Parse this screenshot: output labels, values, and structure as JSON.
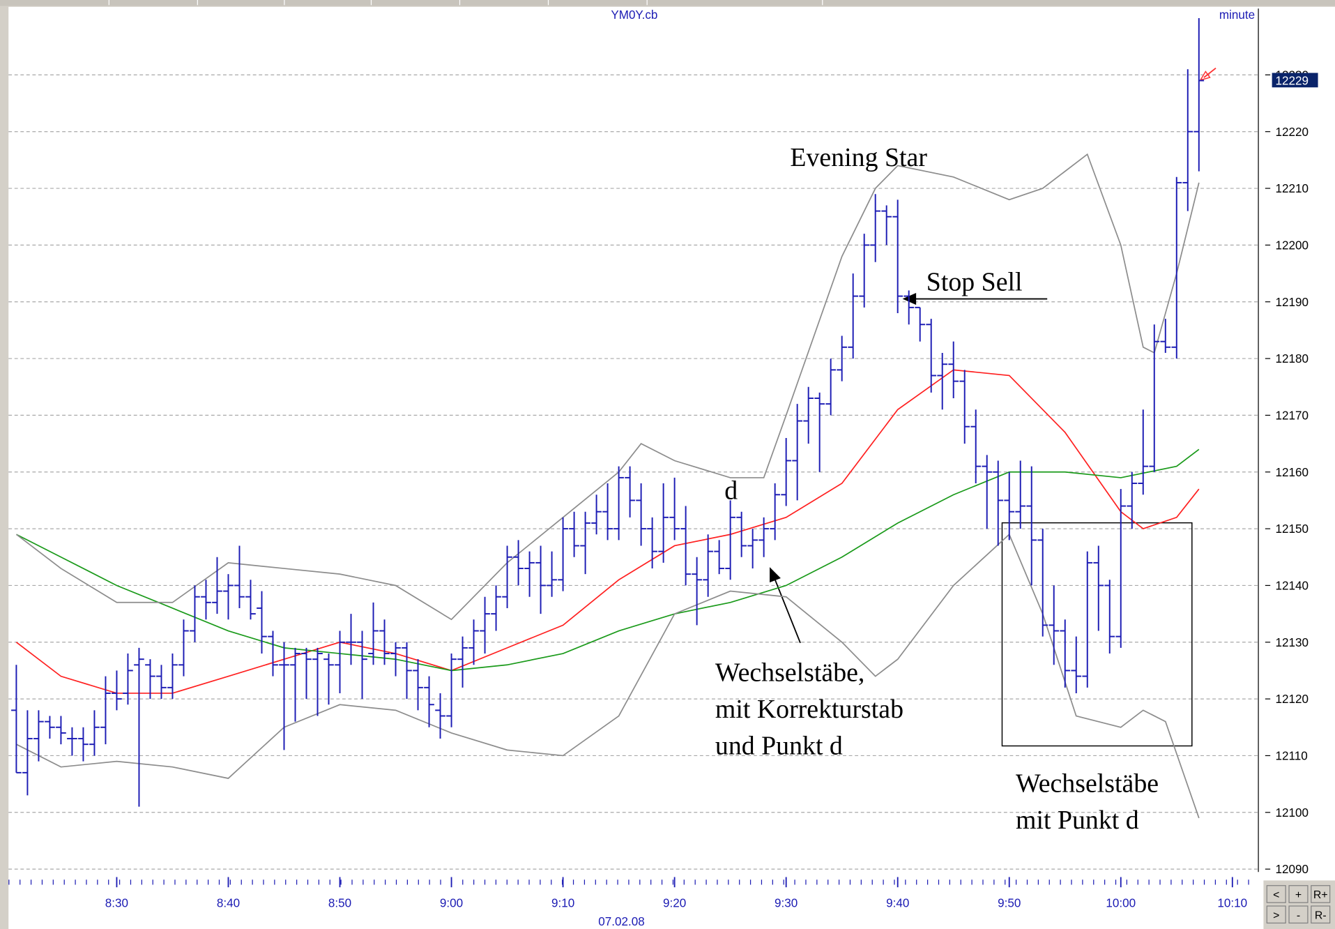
{
  "chart_data": {
    "type": "ohlc",
    "title": "YM0Y.cb",
    "interval_label": "minute",
    "date_label": "07.02.08",
    "last_price": 12229,
    "color": "#1c1cb4",
    "xlim": [
      500.3,
      612.1
    ],
    "xticks": [
      {
        "value": 510,
        "label": "8:30"
      },
      {
        "value": 520,
        "label": "8:40"
      },
      {
        "value": 530,
        "label": "8:50"
      },
      {
        "value": 540,
        "label": "9:00"
      },
      {
        "value": 550,
        "label": "9:10"
      },
      {
        "value": 560,
        "label": "9:20"
      },
      {
        "value": 570,
        "label": "9:30"
      },
      {
        "value": 580,
        "label": "9:40"
      },
      {
        "value": 590,
        "label": "9:50"
      },
      {
        "value": 600,
        "label": "10:00"
      },
      {
        "value": 610,
        "label": "10:10"
      }
    ],
    "ylim": [
      12089.8,
      12241.7
    ],
    "yticks": [
      12090,
      12100,
      12110,
      12120,
      12130,
      12140,
      12150,
      12160,
      12170,
      12180,
      12190,
      12200,
      12210,
      12220,
      12230
    ],
    "grid": true,
    "x": [
      501,
      502,
      503,
      504,
      505,
      506,
      507,
      508,
      509,
      510,
      511,
      512,
      513,
      514,
      515,
      516,
      517,
      518,
      519,
      520,
      521,
      522,
      523,
      524,
      525,
      526,
      527,
      528,
      529,
      530,
      531,
      532,
      533,
      534,
      535,
      536,
      537,
      538,
      539,
      540,
      541,
      542,
      543,
      544,
      545,
      546,
      547,
      548,
      549,
      550,
      551,
      552,
      553,
      554,
      555,
      556,
      557,
      558,
      559,
      560,
      561,
      562,
      563,
      564,
      565,
      566,
      567,
      568,
      569,
      570,
      571,
      572,
      573,
      574,
      575,
      576,
      577,
      578,
      579,
      580,
      581,
      582,
      583,
      584,
      585,
      586,
      587,
      588,
      589,
      590,
      591,
      592,
      593,
      594,
      595,
      596,
      597,
      598,
      599,
      600,
      601,
      602,
      603,
      604,
      605,
      606,
      607
    ],
    "open": [
      12118,
      12107,
      12113,
      12116,
      12115,
      12113,
      12113,
      12112,
      12115,
      12121,
      12121,
      12126,
      12126,
      12124,
      12122,
      12126,
      12132,
      12138,
      12137,
      12139,
      12140,
      12138,
      12136,
      12131,
      12126,
      12126,
      12128,
      12127,
      12127,
      12126,
      12130,
      12130,
      12128,
      12132,
      12128,
      12129,
      12125,
      12122,
      12118,
      12117,
      12127,
      12129,
      12132,
      12135,
      12138,
      12145,
      12143,
      12144,
      12140,
      12141,
      12150,
      12147,
      12151,
      12153,
      12150,
      12159,
      12155,
      12150,
      12146,
      12152,
      12150,
      12142,
      12141,
      12146,
      12143,
      12152,
      12147,
      12148,
      12150,
      12156,
      12162,
      12169,
      12173,
      12172,
      12178,
      12182,
      12191,
      12200,
      12206,
      12205,
      12191,
      12189,
      12186,
      12177,
      12179,
      12176,
      12168,
      12161,
      12160,
      12155,
      12153,
      12154,
      12148,
      12133,
      12132,
      12125,
      12124,
      12144,
      12140,
      12131,
      12154,
      12158,
      12161,
      12183,
      12182,
      12211,
      12220
    ],
    "high": [
      12126,
      12118,
      12118,
      12117,
      12117,
      12115,
      12115,
      12118,
      12124,
      12125,
      12128,
      12129,
      12127,
      12126,
      12128,
      12134,
      12140,
      12141,
      12145,
      12142,
      12147,
      12141,
      12139,
      12132,
      12130,
      12129,
      12129,
      12129,
      12128,
      12132,
      12135,
      12132,
      12137,
      12134,
      12130,
      12130,
      12127,
      12124,
      12121,
      12128,
      12131,
      12134,
      12138,
      12140,
      12147,
      12148,
      12146,
      12147,
      12146,
      12152,
      12153,
      12153,
      12156,
      12158,
      12161,
      12161,
      12158,
      12152,
      12158,
      12159,
      12154,
      12145,
      12149,
      12148,
      12155,
      12153,
      12150,
      12152,
      12158,
      12166,
      12172,
      12175,
      12174,
      12180,
      12184,
      12195,
      12202,
      12209,
      12207,
      12208,
      12192,
      12189,
      12187,
      12181,
      12183,
      12178,
      12171,
      12163,
      12162,
      12160,
      12162,
      12161,
      12150,
      12140,
      12134,
      12131,
      12146,
      12147,
      12141,
      12157,
      12160,
      12171,
      12186,
      12187,
      12212,
      12231,
      12240
    ],
    "low": [
      12107,
      12103,
      12109,
      12113,
      12112,
      12110,
      12109,
      12110,
      12112,
      12118,
      12119,
      12101,
      12120,
      12120,
      12120,
      12124,
      12130,
      12134,
      12135,
      12134,
      12136,
      12134,
      12128,
      12124,
      12111,
      12116,
      12120,
      12117,
      12119,
      12121,
      12126,
      12120,
      12126,
      12126,
      12124,
      12120,
      12118,
      12115,
      12113,
      12115,
      12122,
      12126,
      12128,
      12132,
      12136,
      12140,
      12138,
      12135,
      12138,
      12139,
      12145,
      12142,
      12149,
      12148,
      12148,
      12152,
      12147,
      12143,
      12144,
      12148,
      12140,
      12133,
      12138,
      12142,
      12141,
      12145,
      12143,
      12145,
      12148,
      12154,
      12155,
      12165,
      12160,
      12170,
      12176,
      12180,
      12189,
      12197,
      12200,
      12188,
      12186,
      12183,
      12174,
      12171,
      12173,
      12165,
      12158,
      12150,
      12147,
      12148,
      12150,
      12140,
      12131,
      12126,
      12122,
      12121,
      12122,
      12132,
      12128,
      12129,
      12150,
      12156,
      12160,
      12181,
      12180,
      12206,
      12213
    ],
    "close": [
      12107,
      12113,
      12116,
      12115,
      12114,
      12113,
      12112,
      12115,
      12121,
      12120,
      12125,
      12127,
      12124,
      12122,
      12126,
      12132,
      12138,
      12137,
      12139,
      12140,
      12138,
      12135,
      12131,
      12126,
      12126,
      12128,
      12127,
      12128,
      12126,
      12130,
      12130,
      12127,
      12132,
      12128,
      12129,
      12125,
      12122,
      12119,
      12117,
      12127,
      12129,
      12132,
      12135,
      12138,
      12145,
      12143,
      12144,
      12140,
      12141,
      12150,
      12147,
      12151,
      12153,
      12150,
      12159,
      12155,
      12150,
      12146,
      12152,
      12150,
      12142,
      12141,
      12146,
      12143,
      12152,
      12147,
      12148,
      12150,
      12156,
      12162,
      12169,
      12173,
      12172,
      12178,
      12182,
      12191,
      12200,
      12206,
      12205,
      12191,
      12189,
      12186,
      12177,
      12179,
      12176,
      12168,
      12161,
      12160,
      12155,
      12153,
      12154,
      12148,
      12133,
      12132,
      12125,
      12124,
      12144,
      12140,
      12131,
      12154,
      12158,
      12161,
      12183,
      12182,
      12211,
      12220,
      12229
    ],
    "lines": [
      {
        "color": "#ff2020",
        "x": [
          501,
          505,
          510,
          515,
          520,
          525,
          530,
          535,
          540,
          545,
          550,
          555,
          560,
          565,
          570,
          575,
          580,
          585,
          590,
          595,
          600,
          602,
          605,
          607
        ],
        "values": [
          12130,
          12124,
          12121,
          12121,
          12124,
          12127,
          12130,
          12128,
          12125,
          12129,
          12133,
          12141,
          12147,
          12149,
          12152,
          12158,
          12171,
          12178,
          12177,
          12167,
          12153,
          12150,
          12152,
          12157
        ]
      },
      {
        "color": "#1a9a1a",
        "x": [
          501,
          505,
          510,
          515,
          520,
          525,
          530,
          535,
          540,
          545,
          550,
          555,
          560,
          565,
          570,
          575,
          580,
          585,
          590,
          595,
          600,
          605,
          607
        ],
        "values": [
          12149,
          12145,
          12140,
          12136,
          12132,
          12129,
          12128,
          12127,
          12125,
          12126,
          12128,
          12132,
          12135,
          12137,
          12140,
          12145,
          12151,
          12156,
          12160,
          12160,
          12159,
          12161,
          12164
        ]
      },
      {
        "color": "#8c8c8c",
        "x": [
          501,
          505,
          510,
          515,
          520,
          525,
          530,
          535,
          540,
          545,
          550,
          555,
          557,
          560,
          565,
          568,
          570,
          575,
          578,
          580,
          585,
          590,
          593,
          597,
          600,
          602,
          603,
          605,
          607
        ],
        "values": [
          12149,
          12143,
          12137,
          12137,
          12144,
          12143,
          12142,
          12140,
          12134,
          12144,
          12152,
          12160,
          12165,
          12162,
          12159,
          12159,
          12170,
          12198,
          12210,
          12214,
          12212,
          12208,
          12210,
          12216,
          12200,
          12182,
          12181,
          12195,
          12211
        ]
      },
      {
        "color": "#8c8c8c",
        "x": [
          501,
          505,
          510,
          515,
          520,
          525,
          530,
          535,
          540,
          545,
          550,
          555,
          560,
          565,
          570,
          575,
          578,
          580,
          585,
          590,
          593,
          596,
          600,
          602,
          604,
          607
        ],
        "values": [
          12112,
          12108,
          12109,
          12108,
          12106,
          12115,
          12119,
          12118,
          12114,
          12111,
          12110,
          12117,
          12135,
          12139,
          12138,
          12130,
          12124,
          12127,
          12140,
          12149,
          12135,
          12117,
          12115,
          12118,
          12116,
          12099
        ]
      }
    ],
    "annotations": [
      [
        "Evening Star"
      ],
      [
        "Stop Sell"
      ],
      [
        "d"
      ],
      [
        "Wechselstäbe,",
        "mit Korrekturstab",
        "und Punkt d"
      ],
      [
        "Wechselstäbe",
        "mit Punkt d"
      ]
    ],
    "buttons": [
      "<",
      "+",
      "R+",
      ">",
      "-",
      "R-"
    ]
  }
}
